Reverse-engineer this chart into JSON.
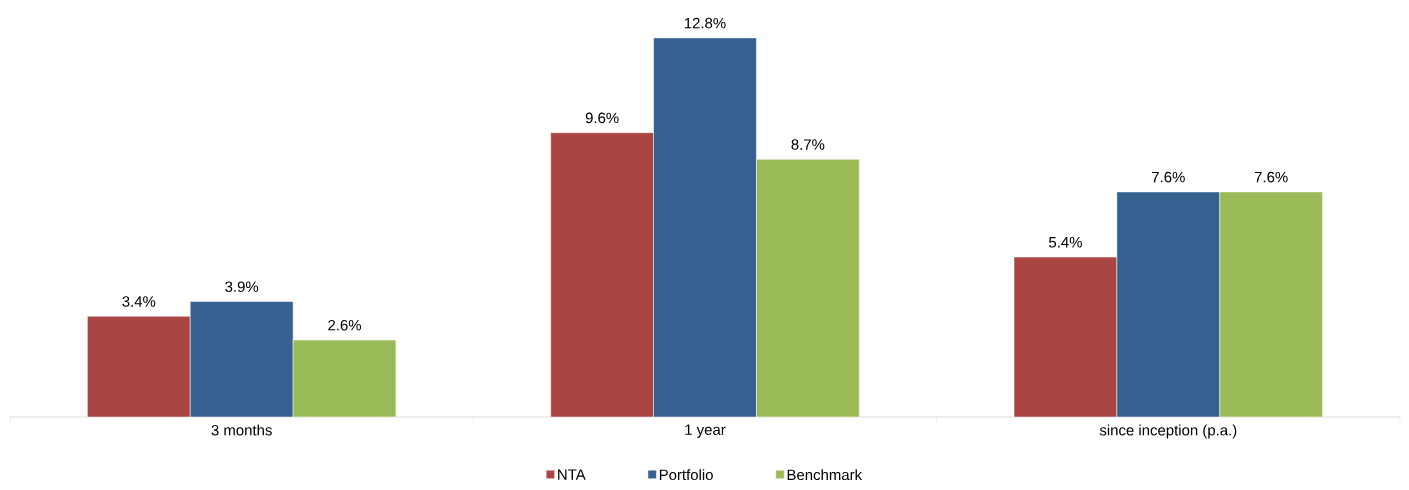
{
  "chart_data": {
    "type": "bar",
    "categories": [
      "3 months",
      "1 year",
      "since inception (p.a.)"
    ],
    "series": [
      {
        "name": "NTA",
        "color": "#a94543",
        "values": [
          3.4,
          9.6,
          5.4
        ],
        "value_labels": [
          "3.4%",
          "9.6%",
          "5.4%"
        ]
      },
      {
        "name": "Portfolio",
        "color": "#35608f",
        "values": [
          3.9,
          12.8,
          7.6
        ],
        "value_labels": [
          "3.9%",
          "12.8%",
          "7.6%"
        ]
      },
      {
        "name": "Benchmark",
        "color": "#9bbb59",
        "values": [
          2.6,
          8.7,
          7.6
        ],
        "value_labels": [
          "2.6%",
          "8.7%",
          "7.6%"
        ]
      }
    ],
    "legend": "bottom"
  }
}
